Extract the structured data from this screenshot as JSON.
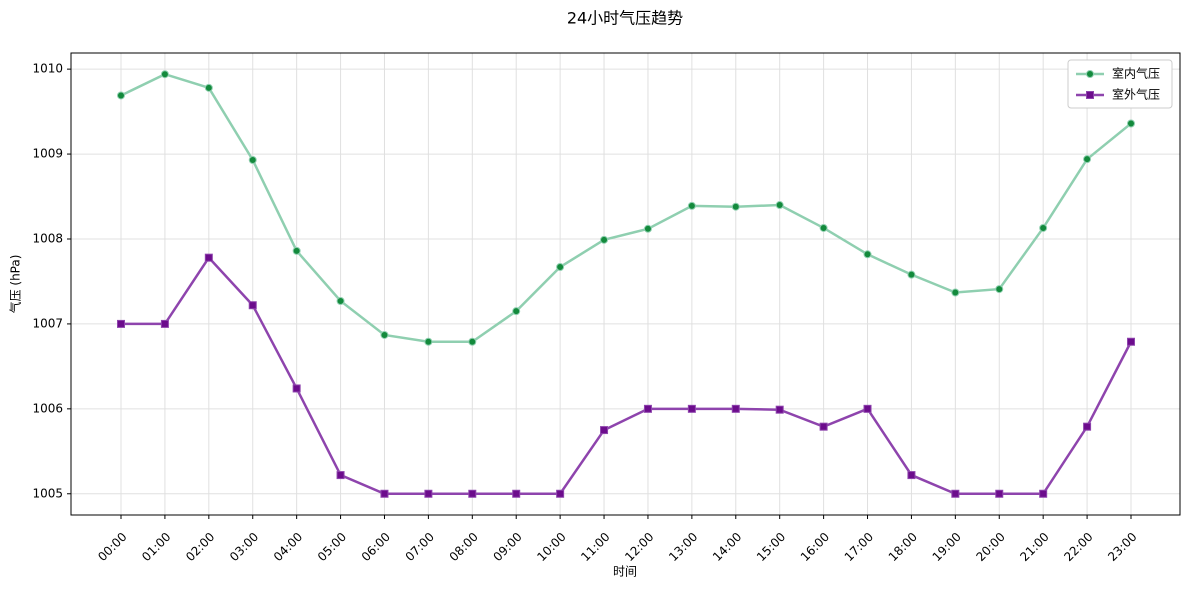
{
  "chart_data": {
    "type": "line",
    "title": "24小时气压趋势",
    "x_label": "时间",
    "y_label": "气压 (hPa)",
    "categories": [
      "00:00",
      "01:00",
      "02:00",
      "03:00",
      "04:00",
      "05:00",
      "06:00",
      "07:00",
      "08:00",
      "09:00",
      "10:00",
      "11:00",
      "12:00",
      "13:00",
      "14:00",
      "15:00",
      "16:00",
      "17:00",
      "18:00",
      "19:00",
      "20:00",
      "21:00",
      "22:00",
      "23:00"
    ],
    "series": [
      {
        "name": "室内气压",
        "color": "#8fcfb0",
        "marker_color": "#138a3c",
        "marker": "circle",
        "values": [
          1009.69,
          1009.94,
          1009.78,
          1008.93,
          1007.86,
          1007.27,
          1006.87,
          1006.79,
          1006.79,
          1007.15,
          1007.67,
          1007.99,
          1008.12,
          1008.39,
          1008.38,
          1008.4,
          1008.13,
          1007.82,
          1007.58,
          1007.37,
          1007.41,
          1008.13,
          1008.94,
          1009.36
        ]
      },
      {
        "name": "室外气压",
        "color": "#8e44ad",
        "marker_color": "#6c0c8c",
        "marker": "square",
        "values": [
          1007.0,
          1007.0,
          1007.78,
          1007.22,
          1006.24,
          1005.22,
          1005.0,
          1005.0,
          1005.0,
          1005.0,
          1005.0,
          1005.75,
          1006.0,
          1006.0,
          1006.0,
          1005.99,
          1005.79,
          1006.0,
          1005.22,
          1005.0,
          1005.0,
          1005.0,
          1005.79,
          1006.79
        ]
      }
    ],
    "ylim": [
      1004.75,
      1010.19
    ],
    "yticks": [
      1005,
      1006,
      1007,
      1008,
      1009,
      1010
    ],
    "grid": true,
    "legend": "upper right"
  }
}
